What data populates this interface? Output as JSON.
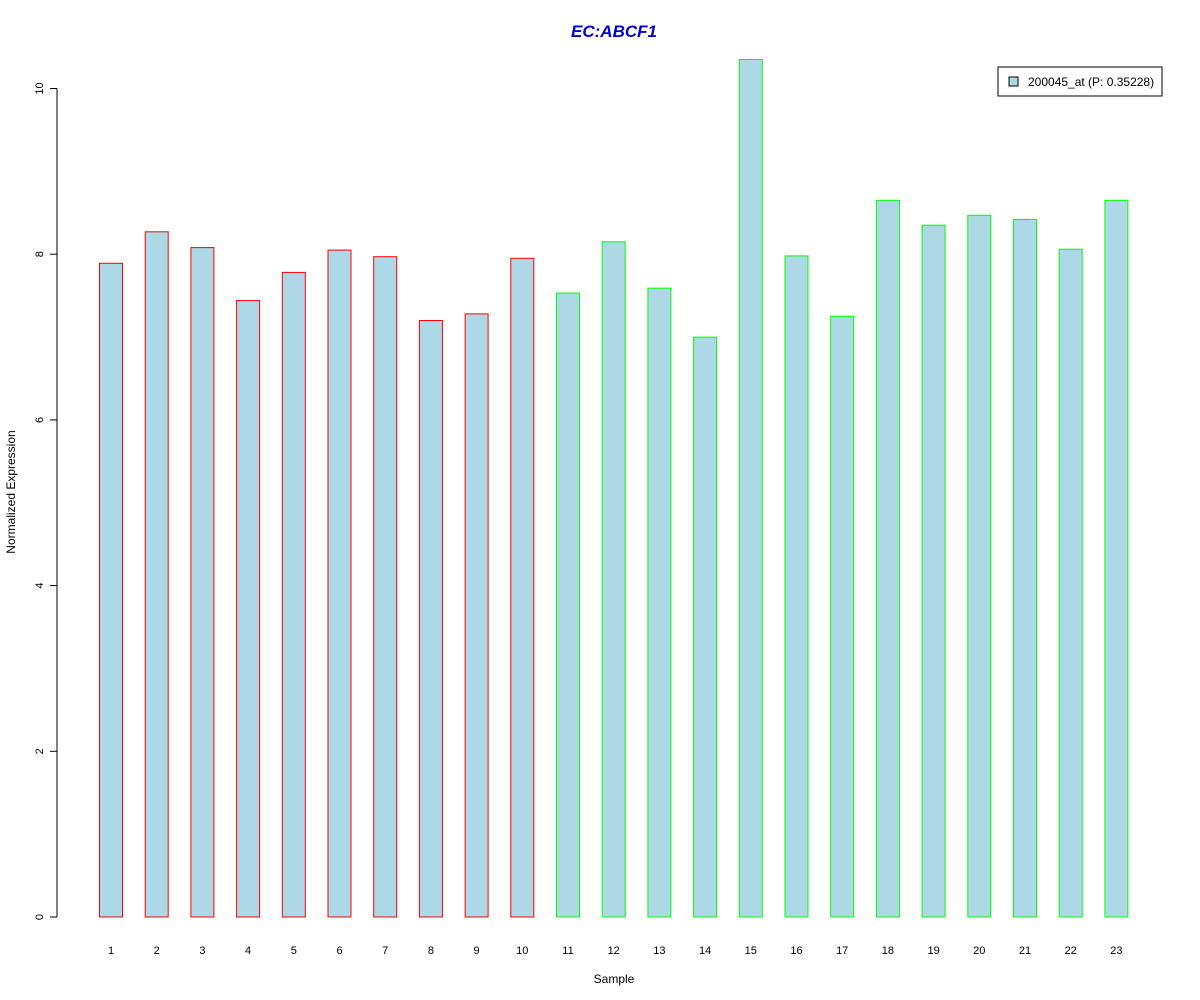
{
  "chart_data": {
    "type": "bar",
    "title": "EC:ABCF1",
    "xlabel": "Sample",
    "ylabel": "Normalized Expression",
    "categories": [
      "1",
      "2",
      "3",
      "4",
      "5",
      "6",
      "7",
      "8",
      "9",
      "10",
      "11",
      "12",
      "13",
      "14",
      "15",
      "16",
      "17",
      "18",
      "19",
      "20",
      "21",
      "22",
      "23"
    ],
    "values": [
      7.89,
      8.27,
      8.08,
      7.44,
      7.78,
      8.05,
      7.97,
      7.2,
      7.28,
      7.95,
      7.53,
      8.15,
      7.59,
      7.0,
      10.35,
      7.98,
      7.25,
      8.65,
      8.35,
      8.47,
      8.42,
      8.06,
      8.65
    ],
    "groups": [
      "red",
      "red",
      "red",
      "red",
      "red",
      "red",
      "red",
      "red",
      "red",
      "red",
      "green",
      "green",
      "green",
      "green",
      "green",
      "green",
      "green",
      "green",
      "green",
      "green",
      "green",
      "green",
      "green"
    ],
    "yticks": [
      "0",
      "2",
      "4",
      "6",
      "8",
      "10"
    ],
    "ylim": [
      0,
      10.35
    ],
    "legend": {
      "label": "200045_at (P: 0.35228)",
      "placement": "top-right"
    },
    "colors": {
      "title": "#0000cc",
      "fill": "#add8e6",
      "red": "#ff0000",
      "green": "#00ff00",
      "axis": "#000000"
    }
  }
}
